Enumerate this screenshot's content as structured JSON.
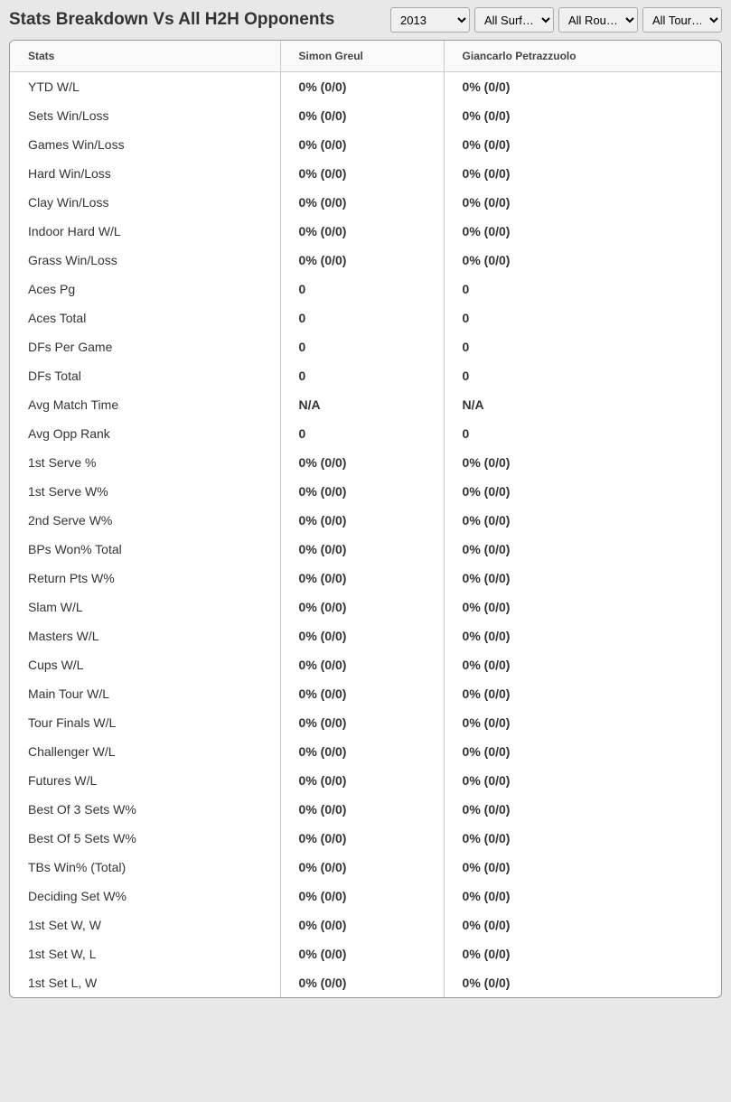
{
  "header": {
    "title": "Stats Breakdown Vs All H2H Opponents"
  },
  "filters": {
    "year": "2013",
    "surface": "All Surf…",
    "round": "All Rou…",
    "tour": "All Tour…"
  },
  "table": {
    "columns": [
      "Stats",
      "Simon Greul",
      "Giancarlo Petrazzuolo"
    ],
    "rows": [
      {
        "stat": "YTD W/L",
        "p1": "0% (0/0)",
        "p2": "0% (0/0)"
      },
      {
        "stat": "Sets Win/Loss",
        "p1": "0% (0/0)",
        "p2": "0% (0/0)"
      },
      {
        "stat": "Games Win/Loss",
        "p1": "0% (0/0)",
        "p2": "0% (0/0)"
      },
      {
        "stat": "Hard Win/Loss",
        "p1": "0% (0/0)",
        "p2": "0% (0/0)"
      },
      {
        "stat": "Clay Win/Loss",
        "p1": "0% (0/0)",
        "p2": "0% (0/0)"
      },
      {
        "stat": "Indoor Hard W/L",
        "p1": "0% (0/0)",
        "p2": "0% (0/0)"
      },
      {
        "stat": "Grass Win/Loss",
        "p1": "0% (0/0)",
        "p2": "0% (0/0)"
      },
      {
        "stat": "Aces Pg",
        "p1": "0",
        "p2": "0"
      },
      {
        "stat": "Aces Total",
        "p1": "0",
        "p2": "0"
      },
      {
        "stat": "DFs Per Game",
        "p1": "0",
        "p2": "0"
      },
      {
        "stat": "DFs Total",
        "p1": "0",
        "p2": "0"
      },
      {
        "stat": "Avg Match Time",
        "p1": "N/A",
        "p2": "N/A"
      },
      {
        "stat": "Avg Opp Rank",
        "p1": "0",
        "p2": "0"
      },
      {
        "stat": "1st Serve %",
        "p1": "0% (0/0)",
        "p2": "0% (0/0)"
      },
      {
        "stat": "1st Serve W%",
        "p1": "0% (0/0)",
        "p2": "0% (0/0)"
      },
      {
        "stat": "2nd Serve W%",
        "p1": "0% (0/0)",
        "p2": "0% (0/0)"
      },
      {
        "stat": "BPs Won% Total",
        "p1": "0% (0/0)",
        "p2": "0% (0/0)"
      },
      {
        "stat": "Return Pts W%",
        "p1": "0% (0/0)",
        "p2": "0% (0/0)"
      },
      {
        "stat": "Slam W/L",
        "p1": "0% (0/0)",
        "p2": "0% (0/0)"
      },
      {
        "stat": "Masters W/L",
        "p1": "0% (0/0)",
        "p2": "0% (0/0)"
      },
      {
        "stat": "Cups W/L",
        "p1": "0% (0/0)",
        "p2": "0% (0/0)"
      },
      {
        "stat": "Main Tour W/L",
        "p1": "0% (0/0)",
        "p2": "0% (0/0)"
      },
      {
        "stat": "Tour Finals W/L",
        "p1": "0% (0/0)",
        "p2": "0% (0/0)"
      },
      {
        "stat": "Challenger W/L",
        "p1": "0% (0/0)",
        "p2": "0% (0/0)"
      },
      {
        "stat": "Futures W/L",
        "p1": "0% (0/0)",
        "p2": "0% (0/0)"
      },
      {
        "stat": "Best Of 3 Sets W%",
        "p1": "0% (0/0)",
        "p2": "0% (0/0)"
      },
      {
        "stat": "Best Of 5 Sets W%",
        "p1": "0% (0/0)",
        "p2": "0% (0/0)"
      },
      {
        "stat": "TBs Win% (Total)",
        "p1": "0% (0/0)",
        "p2": "0% (0/0)"
      },
      {
        "stat": "Deciding Set W%",
        "p1": "0% (0/0)",
        "p2": "0% (0/0)"
      },
      {
        "stat": "1st Set W, W",
        "p1": "0% (0/0)",
        "p2": "0% (0/0)"
      },
      {
        "stat": "1st Set W, L",
        "p1": "0% (0/0)",
        "p2": "0% (0/0)"
      },
      {
        "stat": "1st Set L, W",
        "p1": "0% (0/0)",
        "p2": "0% (0/0)"
      }
    ]
  },
  "styling": {
    "background_color": "#e8e8e8",
    "table_background": "#ffffff",
    "border_color": "#cccccc",
    "text_color": "#333333",
    "header_bg": "#fafafa"
  }
}
